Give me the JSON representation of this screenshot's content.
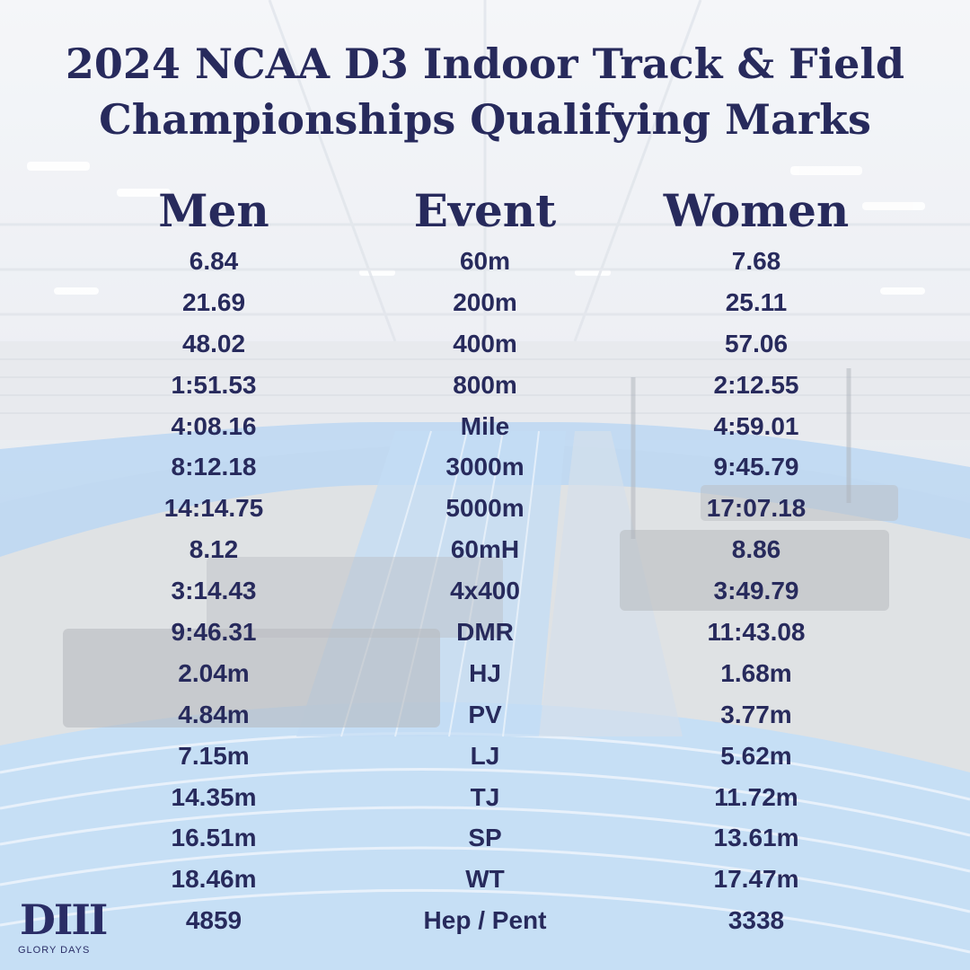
{
  "title": {
    "line1": "2024 NCAA D3 Indoor Track & Field",
    "line2": "Championships Qualifying Marks"
  },
  "columns": {
    "men": "Men",
    "event": "Event",
    "women": "Women"
  },
  "rows": [
    {
      "men": "6.84",
      "event": "60m",
      "women": "7.68"
    },
    {
      "men": "21.69",
      "event": "200m",
      "women": "25.11"
    },
    {
      "men": "48.02",
      "event": "400m",
      "women": "57.06"
    },
    {
      "men": "1:51.53",
      "event": "800m",
      "women": "2:12.55"
    },
    {
      "men": "4:08.16",
      "event": "Mile",
      "women": "4:59.01"
    },
    {
      "men": "8:12.18",
      "event": "3000m",
      "women": "9:45.79"
    },
    {
      "men": "14:14.75",
      "event": "5000m",
      "women": "17:07.18"
    },
    {
      "men": "8.12",
      "event": "60mH",
      "women": "8.86"
    },
    {
      "men": "3:14.43",
      "event": "4x400",
      "women": "3:49.79"
    },
    {
      "men": "9:46.31",
      "event": "DMR",
      "women": "11:43.08"
    },
    {
      "men": "2.04m",
      "event": "HJ",
      "women": "1.68m"
    },
    {
      "men": "4.84m",
      "event": "PV",
      "women": "3.77m"
    },
    {
      "men": "7.15m",
      "event": "LJ",
      "women": "5.62m"
    },
    {
      "men": "14.35m",
      "event": "TJ",
      "women": "11.72m"
    },
    {
      "men": "16.51m",
      "event": "SP",
      "women": "13.61m"
    },
    {
      "men": "18.46m",
      "event": "WT",
      "women": "17.47m"
    },
    {
      "men": "4859",
      "event": "Hep / Pent",
      "women": "3338"
    }
  ],
  "logo": {
    "mark": "DIII",
    "text": "GLORY DAYS"
  },
  "colors": {
    "text": "#272a5c",
    "track_blue": "#a9cdf0",
    "background": "#e8ecf1"
  }
}
